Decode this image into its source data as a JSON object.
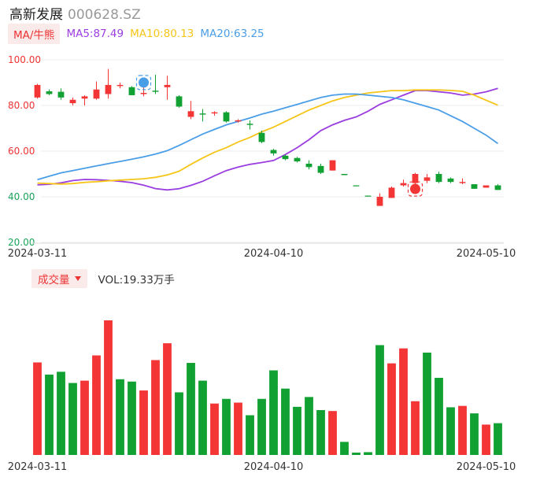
{
  "header": {
    "name": "高新发展",
    "code": "000628.SZ"
  },
  "legend": {
    "ma_label": "MA/牛熊",
    "ma5": "MA5:87.49",
    "ma10": "MA10:80.13",
    "ma20": "MA20:63.25",
    "vol_label": "成交量",
    "vol_value": "VOL:19.33万手"
  },
  "colors": {
    "up": "#f33535",
    "down": "#11a032",
    "ma5": "#9b3ee0",
    "ma10": "#f5c518",
    "ma20": "#4a9ee8"
  },
  "icons": {
    "bear": "bear-badge-icon",
    "bull": "bull-badge-icon"
  },
  "chart_data": {
    "type": "candlestick",
    "y_ticks": [
      "100.00",
      "80.00",
      "60.00",
      "40.00",
      "20.00"
    ],
    "ylim": [
      20,
      100
    ],
    "x_ticks": [
      "2024-03-11",
      "2024-04-10",
      "2024-05-10"
    ],
    "tick_index": [
      0,
      20,
      38
    ],
    "candles": [
      {
        "o": 83.5,
        "c": 89,
        "h": 89.5,
        "l": 83
      },
      {
        "o": 86.2,
        "c": 85,
        "h": 87,
        "l": 84.5
      },
      {
        "o": 86,
        "c": 83.5,
        "h": 87.5,
        "l": 82.5
      },
      {
        "o": 81,
        "c": 82.5,
        "h": 83.5,
        "l": 80
      },
      {
        "o": 83,
        "c": 84,
        "h": 84.5,
        "l": 80
      },
      {
        "o": 83,
        "c": 87,
        "h": 90.5,
        "l": 82.5
      },
      {
        "o": 85,
        "c": 89,
        "h": 96,
        "l": 83
      },
      {
        "o": 88.5,
        "c": 89,
        "h": 90,
        "l": 87.5
      },
      {
        "o": 88,
        "c": 84.5,
        "h": 88.5,
        "l": 84.5
      },
      {
        "o": 85,
        "c": 85.5,
        "h": 89,
        "l": 84
      },
      {
        "o": 86.5,
        "c": 86,
        "h": 93.5,
        "l": 85
      },
      {
        "o": 88,
        "c": 89,
        "h": 93,
        "l": 82.5
      },
      {
        "o": 84,
        "c": 79.5,
        "h": 84.5,
        "l": 79
      },
      {
        "o": 75,
        "c": 77.5,
        "h": 82,
        "l": 74
      },
      {
        "o": 76.5,
        "c": 76,
        "h": 78.5,
        "l": 73
      },
      {
        "o": 76.5,
        "c": 77,
        "h": 77.5,
        "l": 75.5
      },
      {
        "o": 77,
        "c": 73,
        "h": 77.5,
        "l": 72.5
      },
      {
        "o": 73,
        "c": 73.5,
        "h": 74,
        "l": 72.5
      },
      {
        "o": 72,
        "c": 71.5,
        "h": 73.5,
        "l": 69.5
      },
      {
        "o": 68,
        "c": 64,
        "h": 69,
        "l": 63.5
      },
      {
        "o": 60.5,
        "c": 59,
        "h": 61,
        "l": 58
      },
      {
        "o": 58,
        "c": 56.5,
        "h": 58.5,
        "l": 56
      },
      {
        "o": 57,
        "c": 55.5,
        "h": 57.5,
        "l": 55
      },
      {
        "o": 54.5,
        "c": 53,
        "h": 56,
        "l": 52
      },
      {
        "o": 53.5,
        "c": 50.5,
        "h": 54.5,
        "l": 50
      },
      {
        "o": 51.5,
        "c": 56,
        "h": 56,
        "l": 51.5
      },
      {
        "o": 50,
        "c": 49.5,
        "h": 50,
        "l": 49.5
      },
      {
        "o": 45,
        "c": 44.6,
        "h": 45,
        "l": 44.6
      },
      {
        "o": 40.5,
        "c": 40.2,
        "h": 40.5,
        "l": 40.2
      },
      {
        "o": 36,
        "c": 40,
        "h": 41.5,
        "l": 36
      },
      {
        "o": 39.5,
        "c": 44,
        "h": 44.5,
        "l": 39.5
      },
      {
        "o": 45,
        "c": 46,
        "h": 47.5,
        "l": 44.5
      },
      {
        "o": 46,
        "c": 50,
        "h": 50.5,
        "l": 45.5
      },
      {
        "o": 47,
        "c": 48.5,
        "h": 50,
        "l": 46
      },
      {
        "o": 50,
        "c": 46.5,
        "h": 51,
        "l": 46
      },
      {
        "o": 48,
        "c": 46.5,
        "h": 48.5,
        "l": 46
      },
      {
        "o": 46,
        "c": 46.5,
        "h": 48,
        "l": 45.5
      },
      {
        "o": 45.5,
        "c": 43.5,
        "h": 45.5,
        "l": 43.5
      },
      {
        "o": 44,
        "c": 45,
        "h": 45,
        "l": 44
      },
      {
        "o": 45,
        "c": 43,
        "h": 45.5,
        "l": 43
      }
    ],
    "series": [
      {
        "name": "MA5",
        "values": [
          45.2,
          45.5,
          46.1,
          47.1,
          47.6,
          47.5,
          47.2,
          46.8,
          46.2,
          45.1,
          43.6,
          43.0,
          43.5,
          45.0,
          46.8,
          49.2,
          51.5,
          53.0,
          54.2,
          55.0,
          55.9,
          58.5,
          61.5,
          65.0,
          69.0,
          71.5,
          73.5,
          75.0,
          77.5,
          80.5,
          82.5,
          84.5,
          86.5,
          86.5,
          86.0,
          85.5,
          84.5,
          85.0,
          86.0,
          87.5
        ]
      },
      {
        "name": "MA10",
        "values": [
          46.0,
          45.8,
          45.6,
          45.8,
          46.3,
          46.6,
          47.0,
          47.3,
          47.6,
          47.9,
          48.5,
          49.6,
          51.2,
          54.2,
          57.0,
          59.5,
          61.5,
          64.0,
          66.0,
          68.5,
          70.5,
          73.0,
          75.5,
          78.0,
          80.0,
          82.0,
          83.5,
          84.5,
          85.5,
          86.0,
          86.5,
          86.5,
          86.8,
          86.8,
          86.8,
          86.6,
          86.2,
          84.5,
          82.3,
          80.1
        ]
      },
      {
        "name": "MA20",
        "values": [
          47.5,
          49.0,
          50.5,
          51.5,
          52.5,
          53.5,
          54.5,
          55.5,
          56.5,
          57.5,
          58.7,
          60.2,
          62.5,
          65.0,
          67.5,
          69.5,
          71.5,
          73.0,
          74.5,
          76.2,
          77.5,
          79.0,
          80.5,
          82.0,
          83.5,
          84.5,
          85.0,
          85.0,
          84.5,
          84.0,
          83.5,
          82.5,
          81.0,
          79.5,
          78.0,
          75.5,
          73.0,
          70.0,
          67.0,
          63.3
        ]
      }
    ],
    "volume": [
      {
        "v": 19.8,
        "up": true
      },
      {
        "v": 17.2,
        "up": false
      },
      {
        "v": 17.8,
        "up": false
      },
      {
        "v": 15.4,
        "up": false
      },
      {
        "v": 15.9,
        "up": true
      },
      {
        "v": 21.3,
        "up": true
      },
      {
        "v": 28.8,
        "up": true
      },
      {
        "v": 16.2,
        "up": false
      },
      {
        "v": 15.7,
        "up": false
      },
      {
        "v": 13.8,
        "up": true
      },
      {
        "v": 20.3,
        "up": true
      },
      {
        "v": 23.9,
        "up": true
      },
      {
        "v": 13.4,
        "up": false
      },
      {
        "v": 19.7,
        "up": false
      },
      {
        "v": 15.9,
        "up": false
      },
      {
        "v": 11.0,
        "up": true
      },
      {
        "v": 12.0,
        "up": false
      },
      {
        "v": 11.2,
        "up": true
      },
      {
        "v": 8.5,
        "up": false
      },
      {
        "v": 12.0,
        "up": false
      },
      {
        "v": 18.1,
        "up": false
      },
      {
        "v": 14.2,
        "up": false
      },
      {
        "v": 10.3,
        "up": false
      },
      {
        "v": 12.4,
        "up": false
      },
      {
        "v": 9.6,
        "up": false
      },
      {
        "v": 9.4,
        "up": true
      },
      {
        "v": 2.8,
        "up": false
      },
      {
        "v": 0.5,
        "up": false
      },
      {
        "v": 0.6,
        "up": false
      },
      {
        "v": 23.5,
        "up": false
      },
      {
        "v": 19.6,
        "up": true
      },
      {
        "v": 22.8,
        "up": true
      },
      {
        "v": 11.5,
        "up": true
      },
      {
        "v": 21.9,
        "up": false
      },
      {
        "v": 16.5,
        "up": false
      },
      {
        "v": 10.2,
        "up": false
      },
      {
        "v": 10.5,
        "up": true
      },
      {
        "v": 8.9,
        "up": false
      },
      {
        "v": 6.5,
        "up": true
      },
      {
        "v": 6.8,
        "up": false
      }
    ],
    "markers": [
      {
        "type": "bear",
        "index": 9
      },
      {
        "type": "bull",
        "index": 32
      }
    ]
  }
}
